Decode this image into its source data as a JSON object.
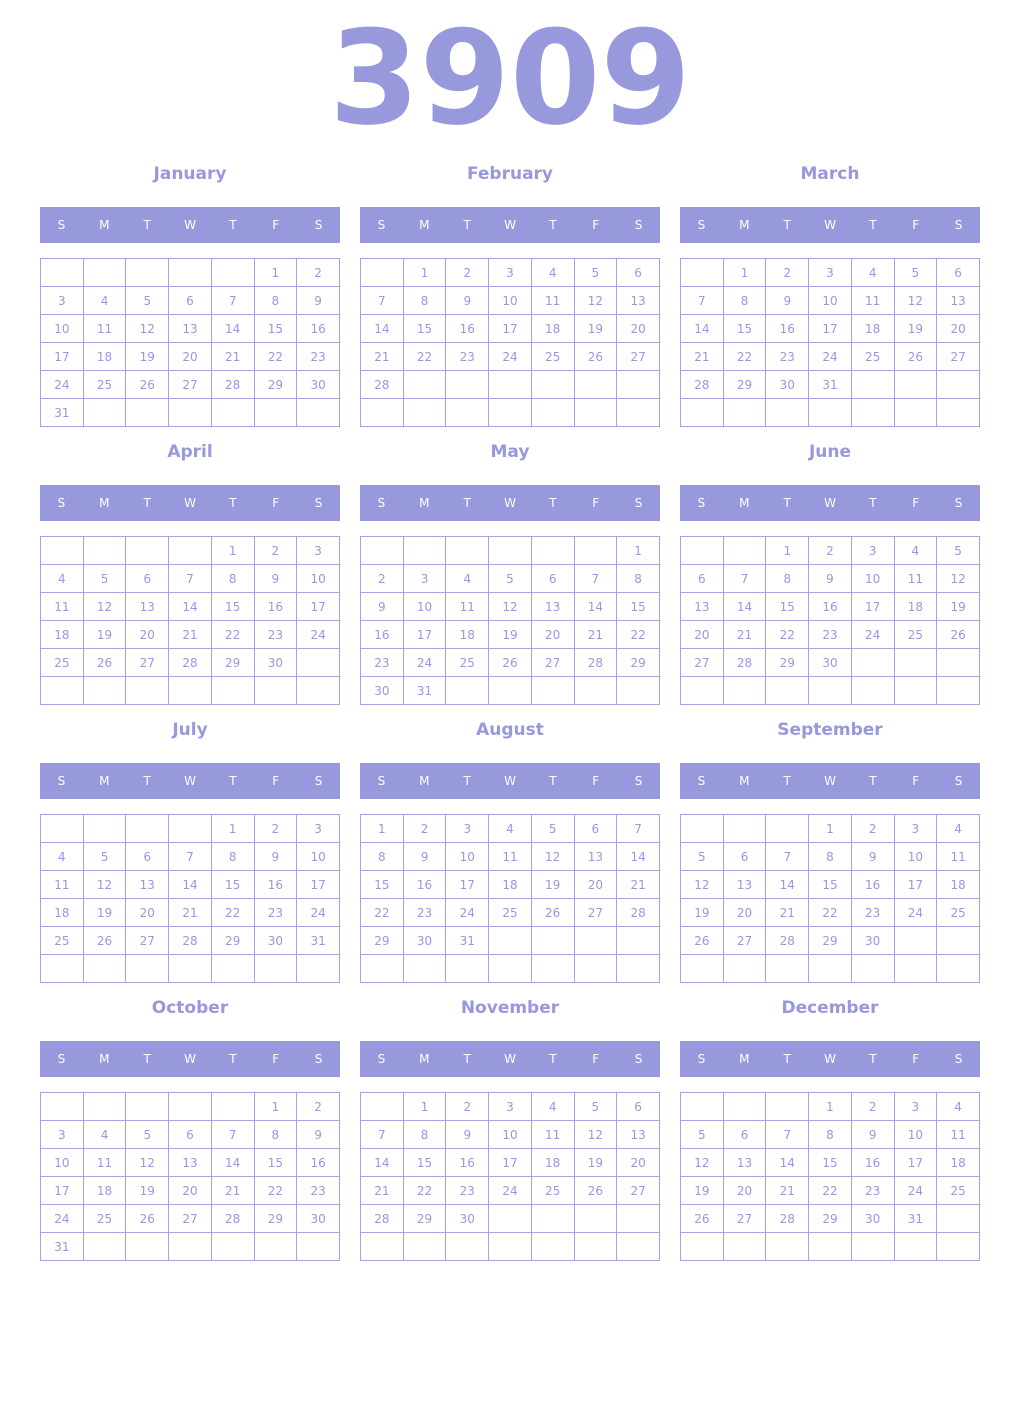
{
  "year": "3909",
  "weekdays": [
    "S",
    "M",
    "T",
    "W",
    "T",
    "F",
    "S"
  ],
  "accent_color": "#9898dc",
  "months": [
    {
      "name": "January",
      "weeks": [
        [
          null,
          null,
          null,
          null,
          null,
          1,
          2
        ],
        [
          3,
          4,
          5,
          6,
          7,
          8,
          9
        ],
        [
          10,
          11,
          12,
          13,
          14,
          15,
          16
        ],
        [
          17,
          18,
          19,
          20,
          21,
          22,
          23
        ],
        [
          24,
          25,
          26,
          27,
          28,
          29,
          30
        ],
        [
          31,
          null,
          null,
          null,
          null,
          null,
          null
        ]
      ]
    },
    {
      "name": "February",
      "weeks": [
        [
          null,
          1,
          2,
          3,
          4,
          5,
          6
        ],
        [
          7,
          8,
          9,
          10,
          11,
          12,
          13
        ],
        [
          14,
          15,
          16,
          17,
          18,
          19,
          20
        ],
        [
          21,
          22,
          23,
          24,
          25,
          26,
          27
        ],
        [
          28,
          null,
          null,
          null,
          null,
          null,
          null
        ],
        [
          null,
          null,
          null,
          null,
          null,
          null,
          null
        ]
      ]
    },
    {
      "name": "March",
      "weeks": [
        [
          null,
          1,
          2,
          3,
          4,
          5,
          6
        ],
        [
          7,
          8,
          9,
          10,
          11,
          12,
          13
        ],
        [
          14,
          15,
          16,
          17,
          18,
          19,
          20
        ],
        [
          21,
          22,
          23,
          24,
          25,
          26,
          27
        ],
        [
          28,
          29,
          30,
          31,
          null,
          null,
          null
        ],
        [
          null,
          null,
          null,
          null,
          null,
          null,
          null
        ]
      ]
    },
    {
      "name": "April",
      "weeks": [
        [
          null,
          null,
          null,
          null,
          1,
          2,
          3
        ],
        [
          4,
          5,
          6,
          7,
          8,
          9,
          10
        ],
        [
          11,
          12,
          13,
          14,
          15,
          16,
          17
        ],
        [
          18,
          19,
          20,
          21,
          22,
          23,
          24
        ],
        [
          25,
          26,
          27,
          28,
          29,
          30,
          null
        ],
        [
          null,
          null,
          null,
          null,
          null,
          null,
          null
        ]
      ]
    },
    {
      "name": "May",
      "weeks": [
        [
          null,
          null,
          null,
          null,
          null,
          null,
          1
        ],
        [
          2,
          3,
          4,
          5,
          6,
          7,
          8
        ],
        [
          9,
          10,
          11,
          12,
          13,
          14,
          15
        ],
        [
          16,
          17,
          18,
          19,
          20,
          21,
          22
        ],
        [
          23,
          24,
          25,
          26,
          27,
          28,
          29
        ],
        [
          30,
          31,
          null,
          null,
          null,
          null,
          null
        ]
      ]
    },
    {
      "name": "June",
      "weeks": [
        [
          null,
          null,
          1,
          2,
          3,
          4,
          5
        ],
        [
          6,
          7,
          8,
          9,
          10,
          11,
          12
        ],
        [
          13,
          14,
          15,
          16,
          17,
          18,
          19
        ],
        [
          20,
          21,
          22,
          23,
          24,
          25,
          26
        ],
        [
          27,
          28,
          29,
          30,
          null,
          null,
          null
        ],
        [
          null,
          null,
          null,
          null,
          null,
          null,
          null
        ]
      ]
    },
    {
      "name": "July",
      "weeks": [
        [
          null,
          null,
          null,
          null,
          1,
          2,
          3
        ],
        [
          4,
          5,
          6,
          7,
          8,
          9,
          10
        ],
        [
          11,
          12,
          13,
          14,
          15,
          16,
          17
        ],
        [
          18,
          19,
          20,
          21,
          22,
          23,
          24
        ],
        [
          25,
          26,
          27,
          28,
          29,
          30,
          31
        ],
        [
          null,
          null,
          null,
          null,
          null,
          null,
          null
        ]
      ]
    },
    {
      "name": "August",
      "weeks": [
        [
          1,
          2,
          3,
          4,
          5,
          6,
          7
        ],
        [
          8,
          9,
          10,
          11,
          12,
          13,
          14
        ],
        [
          15,
          16,
          17,
          18,
          19,
          20,
          21
        ],
        [
          22,
          23,
          24,
          25,
          26,
          27,
          28
        ],
        [
          29,
          30,
          31,
          null,
          null,
          null,
          null
        ],
        [
          null,
          null,
          null,
          null,
          null,
          null,
          null
        ]
      ]
    },
    {
      "name": "September",
      "weeks": [
        [
          null,
          null,
          null,
          1,
          2,
          3,
          4
        ],
        [
          5,
          6,
          7,
          8,
          9,
          10,
          11
        ],
        [
          12,
          13,
          14,
          15,
          16,
          17,
          18
        ],
        [
          19,
          20,
          21,
          22,
          23,
          24,
          25
        ],
        [
          26,
          27,
          28,
          29,
          30,
          null,
          null
        ],
        [
          null,
          null,
          null,
          null,
          null,
          null,
          null
        ]
      ]
    },
    {
      "name": "October",
      "weeks": [
        [
          null,
          null,
          null,
          null,
          null,
          1,
          2
        ],
        [
          3,
          4,
          5,
          6,
          7,
          8,
          9
        ],
        [
          10,
          11,
          12,
          13,
          14,
          15,
          16
        ],
        [
          17,
          18,
          19,
          20,
          21,
          22,
          23
        ],
        [
          24,
          25,
          26,
          27,
          28,
          29,
          30
        ],
        [
          31,
          null,
          null,
          null,
          null,
          null,
          null
        ]
      ]
    },
    {
      "name": "November",
      "weeks": [
        [
          null,
          1,
          2,
          3,
          4,
          5,
          6
        ],
        [
          7,
          8,
          9,
          10,
          11,
          12,
          13
        ],
        [
          14,
          15,
          16,
          17,
          18,
          19,
          20
        ],
        [
          21,
          22,
          23,
          24,
          25,
          26,
          27
        ],
        [
          28,
          29,
          30,
          null,
          null,
          null,
          null
        ],
        [
          null,
          null,
          null,
          null,
          null,
          null,
          null
        ]
      ]
    },
    {
      "name": "December",
      "weeks": [
        [
          null,
          null,
          null,
          1,
          2,
          3,
          4
        ],
        [
          5,
          6,
          7,
          8,
          9,
          10,
          11
        ],
        [
          12,
          13,
          14,
          15,
          16,
          17,
          18
        ],
        [
          19,
          20,
          21,
          22,
          23,
          24,
          25
        ],
        [
          26,
          27,
          28,
          29,
          30,
          31,
          null
        ],
        [
          null,
          null,
          null,
          null,
          null,
          null,
          null
        ]
      ]
    }
  ]
}
